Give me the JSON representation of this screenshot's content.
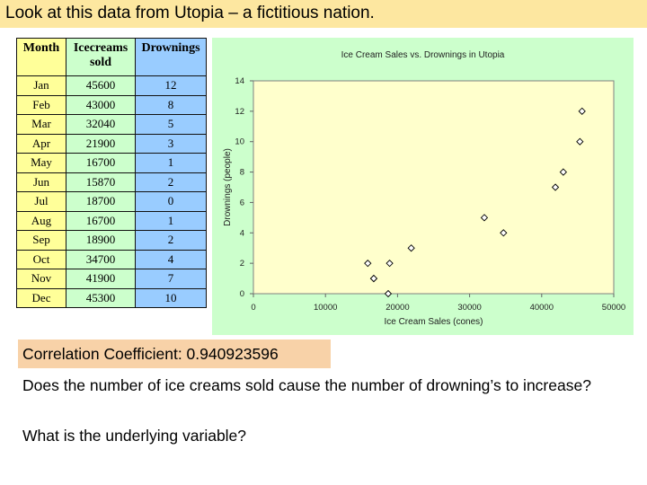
{
  "slide": {
    "title": "Look at this data from Utopia – a fictitious nation.",
    "correlation": "Correlation Coefficient:  0.940923596",
    "question1": "Does the number of ice creams sold cause the number of drowning’s to increase?",
    "question2": "What is the underlying variable?"
  },
  "table": {
    "headers": [
      "Month",
      "Icecreams sold",
      "Drownings"
    ],
    "rows": [
      [
        "Jan",
        "45600",
        "12"
      ],
      [
        "Feb",
        "43000",
        "8"
      ],
      [
        "Mar",
        "32040",
        "5"
      ],
      [
        "Apr",
        "21900",
        "3"
      ],
      [
        "May",
        "16700",
        "1"
      ],
      [
        "Jun",
        "15870",
        "2"
      ],
      [
        "Jul",
        "18700",
        "0"
      ],
      [
        "Aug",
        "16700",
        "1"
      ],
      [
        "Sep",
        "18900",
        "2"
      ],
      [
        "Oct",
        "34700",
        "4"
      ],
      [
        "Nov",
        "41900",
        "7"
      ],
      [
        "Dec",
        "45300",
        "10"
      ]
    ],
    "colors": {
      "month": "#ffff99",
      "icecreams": "#ccffcc",
      "drownings": "#99ccff"
    }
  },
  "chart_data": {
    "type": "scatter",
    "title": "Ice Cream Sales vs. Drownings in Utopia",
    "xlabel": "Ice Cream Sales (cones)",
    "ylabel": "Drownings (people)",
    "xlim": [
      0,
      50000
    ],
    "ylim": [
      0,
      14
    ],
    "xticks": [
      0,
      10000,
      20000,
      30000,
      40000,
      50000
    ],
    "yticks": [
      0,
      2,
      4,
      6,
      8,
      10,
      12,
      14
    ],
    "grid": false,
    "marker": "diamond",
    "background": "#ccffcc",
    "plot_background": "#ffffcc",
    "points": [
      [
        45600,
        12
      ],
      [
        43000,
        8
      ],
      [
        32040,
        5
      ],
      [
        21900,
        3
      ],
      [
        16700,
        1
      ],
      [
        15870,
        2
      ],
      [
        18700,
        0
      ],
      [
        16700,
        1
      ],
      [
        18900,
        2
      ],
      [
        34700,
        4
      ],
      [
        41900,
        7
      ],
      [
        45300,
        10
      ]
    ]
  }
}
